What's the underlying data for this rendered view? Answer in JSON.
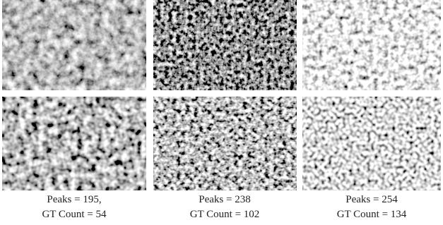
{
  "panels": [
    {
      "caption": [
        "Peaks = 195,",
        "GT Count = 54"
      ]
    },
    {
      "caption": [
        "Peaks = 238",
        "GT Count = 102"
      ]
    },
    {
      "caption": [
        "Peaks = 254",
        "GT Count = 134"
      ]
    }
  ]
}
